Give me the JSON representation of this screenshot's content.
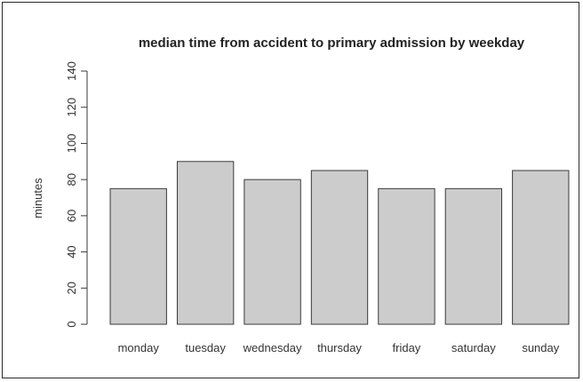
{
  "chart_data": {
    "type": "bar",
    "title": "median time from accident to primary admission by weekday",
    "xlabel": "",
    "ylabel": "minutes",
    "categories": [
      "monday",
      "tuesday",
      "wednesday",
      "thursday",
      "friday",
      "saturday",
      "sunday"
    ],
    "values": [
      75,
      90,
      80,
      85,
      75,
      75,
      85
    ],
    "ylim": [
      0,
      140
    ],
    "yticks": [
      0,
      20,
      40,
      60,
      80,
      100,
      120,
      140
    ],
    "grid": false,
    "legend": "none",
    "colors": {
      "bar_fill": "#cccccc",
      "bar_stroke": "#3a3a3a",
      "axis": "#3a3a3a",
      "text": "#333333"
    }
  }
}
